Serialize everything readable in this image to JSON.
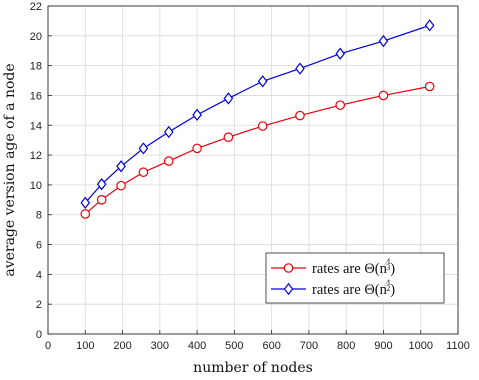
{
  "chart_data": {
    "type": "line",
    "xlabel": "number of nodes",
    "ylabel": "average version age of a node",
    "xlim": [
      0,
      1100
    ],
    "ylim": [
      0,
      22
    ],
    "xticks": [
      0,
      100,
      200,
      300,
      400,
      500,
      600,
      700,
      800,
      900,
      1000,
      1100
    ],
    "yticks": [
      0,
      2,
      4,
      6,
      8,
      10,
      12,
      14,
      16,
      18,
      20,
      22
    ],
    "grid": true,
    "legend_position": "bottom-right",
    "series": [
      {
        "name_prefix": "rates are Θ(n",
        "name_exponent": "1/3",
        "name_suffix": ")",
        "color": "#e8000b",
        "marker": "circle",
        "x": [
          100,
          144,
          196,
          256,
          324,
          400,
          484,
          576,
          676,
          784,
          900,
          1024
        ],
        "y": [
          8.05,
          9.0,
          9.95,
          10.85,
          11.6,
          12.45,
          13.2,
          13.95,
          14.65,
          15.35,
          16.0,
          16.6
        ]
      },
      {
        "name_prefix": "rates are Θ(n",
        "name_exponent": "1/2",
        "name_suffix": ")",
        "color": "#0000e0",
        "marker": "diamond",
        "x": [
          100,
          144,
          196,
          256,
          324,
          400,
          484,
          576,
          676,
          784,
          900,
          1024
        ],
        "y": [
          8.8,
          10.05,
          11.25,
          12.45,
          13.55,
          14.7,
          15.8,
          16.95,
          17.8,
          18.8,
          19.65,
          20.7
        ]
      }
    ]
  }
}
